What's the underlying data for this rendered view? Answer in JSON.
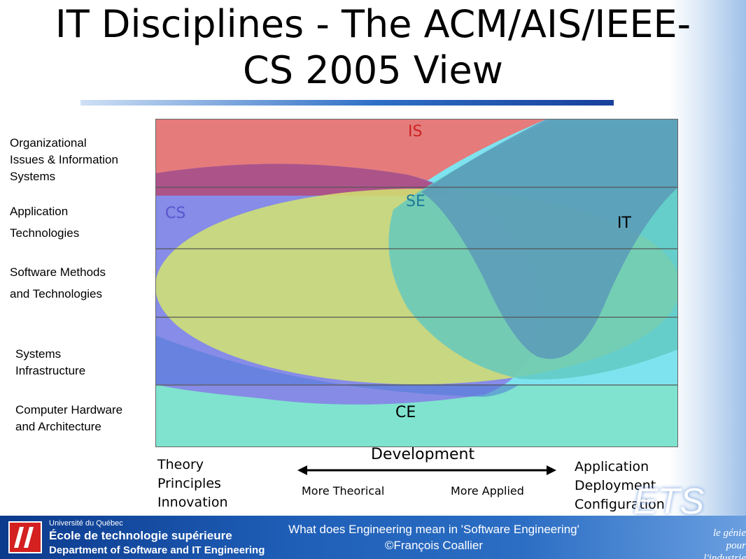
{
  "title": "IT Disciplines - The ACM/AIS/IEEE-\nCS 2005 View",
  "row_labels": [
    "Organizational\nIssues & Information\nSystems",
    "Application\nTechnologies",
    "Software Methods\nand Technologies",
    "Systems\nInfrastructure",
    "Computer Hardware\nand Architecture"
  ],
  "regions": {
    "is": "IS",
    "cs": "CS",
    "se": "SE",
    "it": "IT",
    "ce": "CE"
  },
  "colors": {
    "is": "#e07070",
    "cs": "#8c8ce8",
    "se": "#d8e070",
    "it": "#5fa8c8",
    "ce": "#70e0c8",
    "bg_cyan": "#80e4f0"
  },
  "axis": {
    "left": "Theory\nPrinciples\nInnovation",
    "right": "Application\nDeployment\nConfiguration",
    "development": "Development",
    "more_theorical": "More Theorical",
    "more_applied": "More Applied"
  },
  "footer": {
    "university_line": "Université du Québec",
    "school": "École de technologie supérieure",
    "department": "Department of Software and IT Engineering",
    "text": "What does Engineering mean in 'Software Engineering'\n©François Coallier",
    "ets": "ETS",
    "slogan": "le génie\npour l'industrie"
  }
}
